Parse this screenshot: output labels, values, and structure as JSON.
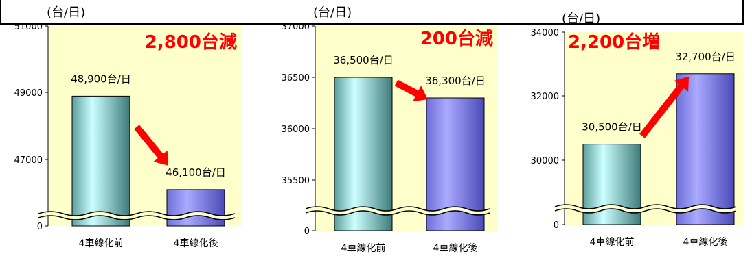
{
  "frame_color": "#000000",
  "plot_bg": "#ffffcc",
  "change_color": "#ff0000",
  "before_gradient": [
    "#5e9e9e",
    "#ccffff",
    "#3e7a7a"
  ],
  "after_gradient": [
    "#6f6fd8",
    "#aaaaff",
    "#4a4ab8"
  ],
  "chart_data": [
    {
      "type": "bar",
      "unit_label": "(台/日)",
      "categories": [
        "4車線化前",
        "4車線化後"
      ],
      "values": [
        48900,
        46100
      ],
      "value_labels": [
        "48,900台/日",
        "46,100台/日"
      ],
      "yticks": [
        "51000",
        "49000",
        "47000",
        "0"
      ],
      "yaxis_break": true,
      "change_label": "2,800台減",
      "direction": "down"
    },
    {
      "type": "bar",
      "unit_label": "(台/日)",
      "categories": [
        "4車線化前",
        "4車線化後"
      ],
      "values": [
        36500,
        36300
      ],
      "value_labels": [
        "36,500台/日",
        "36,300台/日"
      ],
      "yticks": [
        "37000",
        "36500",
        "36000",
        "35500",
        "0"
      ],
      "yaxis_break": true,
      "change_label": "200台減",
      "direction": "down"
    },
    {
      "type": "bar",
      "unit_label": "(台/日)",
      "categories": [
        "4車線化前",
        "4車線化後"
      ],
      "values": [
        30500,
        32700
      ],
      "value_labels": [
        "30,500台/日",
        "32,700台/日"
      ],
      "yticks": [
        "34000",
        "32000",
        "30000",
        "0"
      ],
      "yaxis_break": true,
      "change_label": "2,200台増",
      "direction": "up"
    }
  ]
}
